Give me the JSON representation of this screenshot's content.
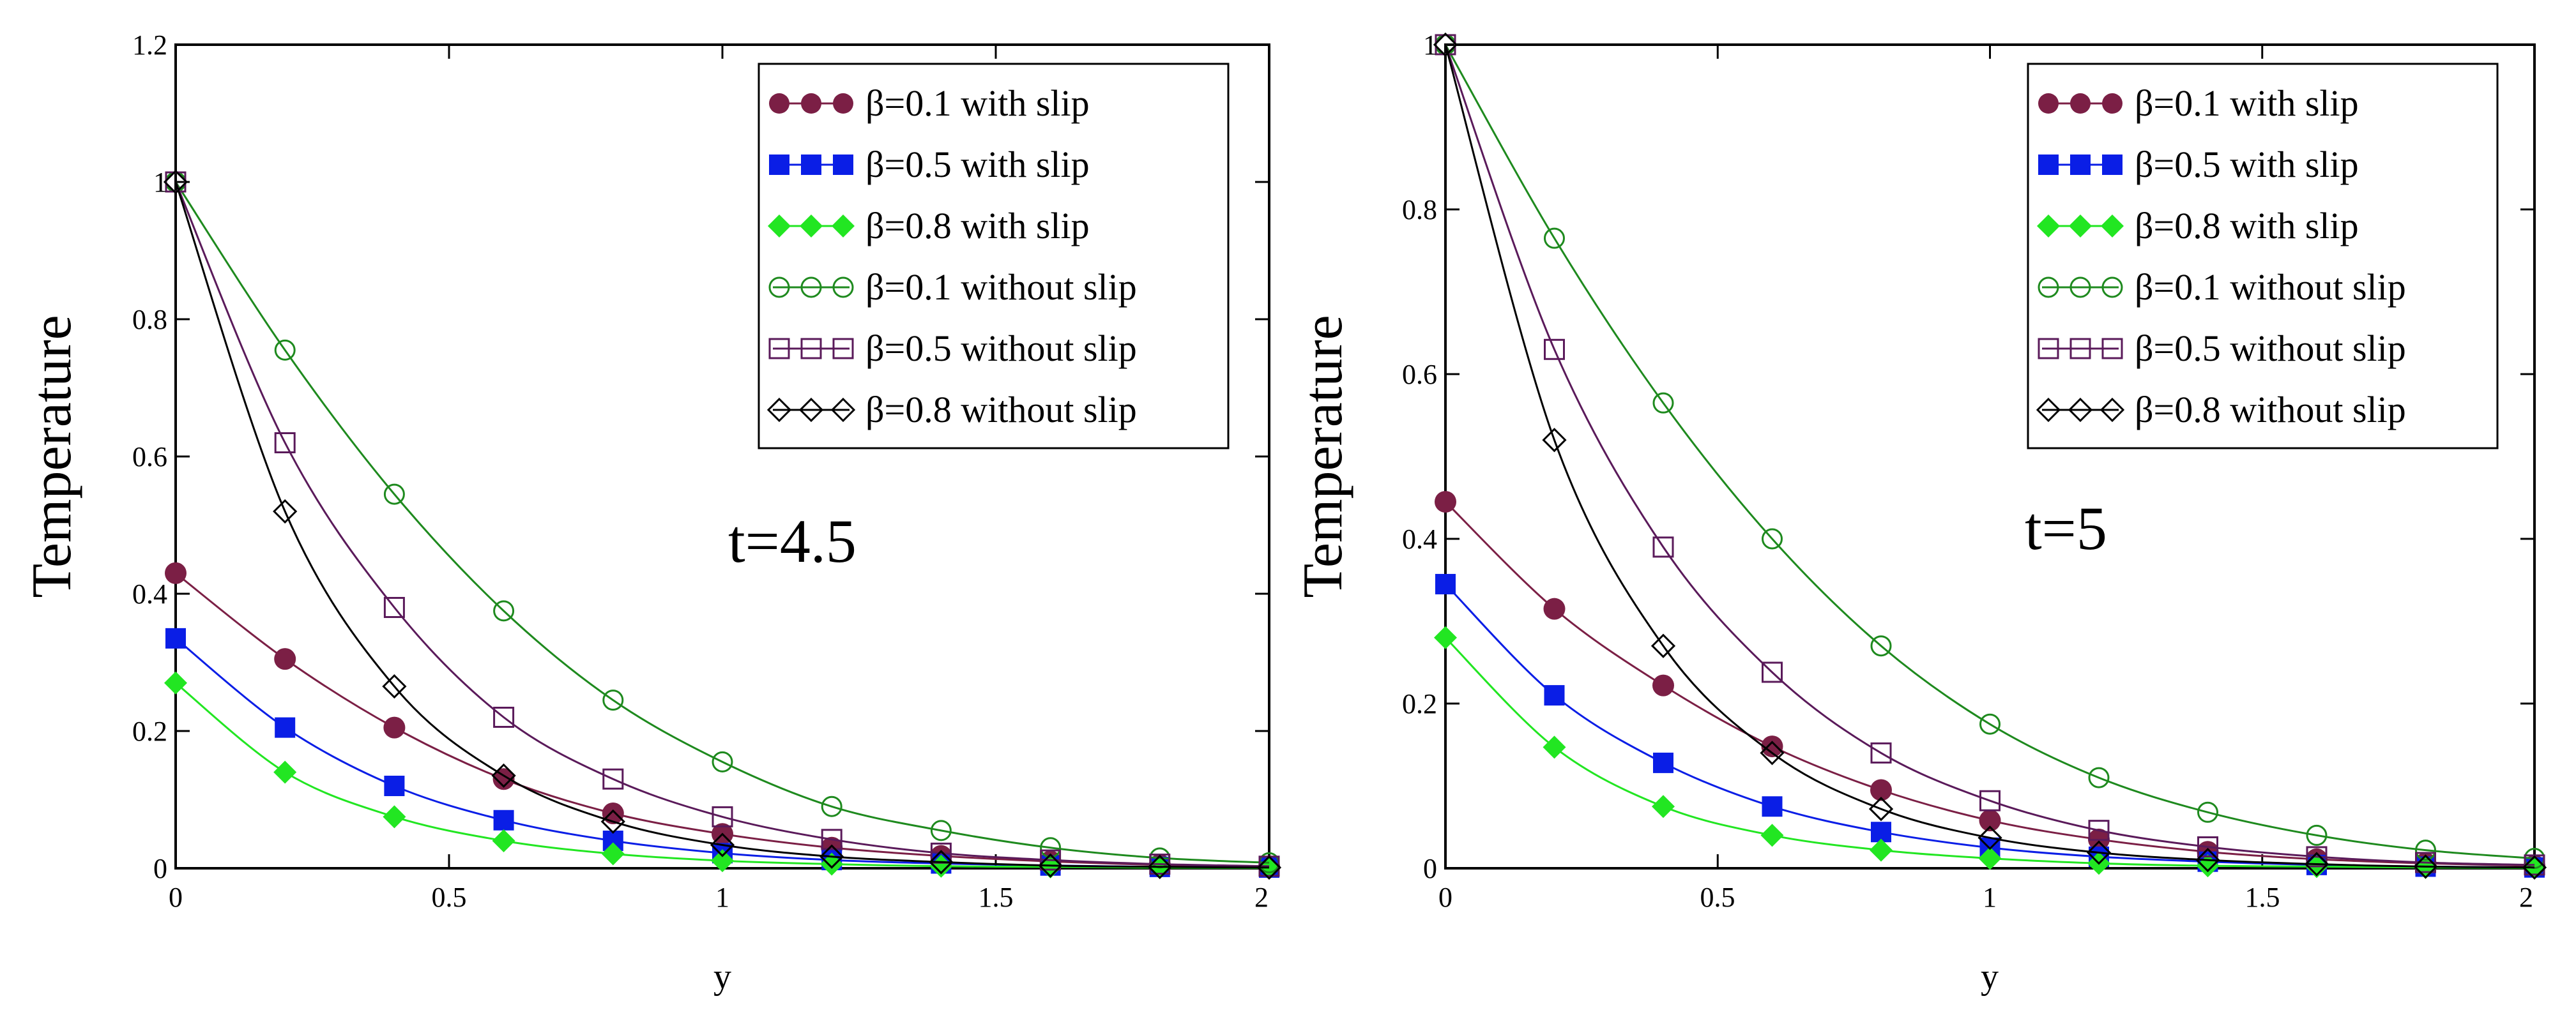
{
  "colors": {
    "maroon": "#7b1f45",
    "blue": "#0a1ee6",
    "lime": "#22e622",
    "green": "#1e8a1e",
    "purple": "#5a1a5a",
    "black": "#000000"
  },
  "chart_data": [
    {
      "type": "line",
      "title": "",
      "annotation": "t=4.5",
      "xlabel": "y",
      "ylabel": "Temperature",
      "xlim": [
        0,
        2
      ],
      "ylim": [
        0,
        1.2
      ],
      "xticks": [
        0,
        0.5,
        1,
        1.5,
        2
      ],
      "xtick_labels": [
        "0",
        "0.5",
        "1",
        "1.5",
        "2"
      ],
      "yticks": [
        0,
        0.2,
        0.4,
        0.6,
        0.8,
        1,
        1.2
      ],
      "ytick_labels": [
        "0",
        "0.2",
        "0.4",
        "0.6",
        "0.8",
        "1",
        "1.2"
      ],
      "legend_position": "top-right",
      "x": [
        0,
        0.2,
        0.4,
        0.6,
        0.8,
        1.0,
        1.2,
        1.4,
        1.6,
        1.8,
        2.0
      ],
      "series": [
        {
          "name": "β=0.1 with slip",
          "color": "maroon",
          "marker": "filled-circle",
          "values": [
            0.43,
            0.305,
            0.205,
            0.13,
            0.08,
            0.05,
            0.03,
            0.018,
            0.01,
            0.005,
            0.003
          ]
        },
        {
          "name": "β=0.5 with slip",
          "color": "blue",
          "marker": "filled-square",
          "values": [
            0.335,
            0.205,
            0.12,
            0.07,
            0.04,
            0.022,
            0.012,
            0.007,
            0.004,
            0.002,
            0.001
          ]
        },
        {
          "name": "β=0.8 with slip",
          "color": "lime",
          "marker": "filled-diamond",
          "values": [
            0.27,
            0.14,
            0.075,
            0.04,
            0.021,
            0.011,
            0.006,
            0.003,
            0.002,
            0.001,
            0.0005
          ]
        },
        {
          "name": "β=0.1 without slip",
          "color": "green",
          "marker": "open-circle",
          "values": [
            1.0,
            0.755,
            0.545,
            0.375,
            0.245,
            0.155,
            0.09,
            0.055,
            0.03,
            0.015,
            0.008
          ]
        },
        {
          "name": "β=0.5 without slip",
          "color": "purple",
          "marker": "open-square",
          "values": [
            1.0,
            0.62,
            0.38,
            0.22,
            0.13,
            0.075,
            0.042,
            0.022,
            0.012,
            0.006,
            0.003
          ]
        },
        {
          "name": "β=0.8 without slip",
          "color": "black",
          "marker": "open-diamond",
          "values": [
            1.0,
            0.52,
            0.265,
            0.135,
            0.068,
            0.034,
            0.017,
            0.009,
            0.004,
            0.002,
            0.001
          ]
        }
      ]
    },
    {
      "type": "line",
      "title": "",
      "annotation": "t=5",
      "xlabel": "y",
      "ylabel": "Temperature",
      "xlim": [
        0,
        2
      ],
      "ylim": [
        0,
        1.0
      ],
      "xticks": [
        0,
        0.5,
        1,
        1.5,
        2
      ],
      "xtick_labels": [
        "0",
        "0.5",
        "1",
        "1.5",
        "2"
      ],
      "yticks": [
        0,
        0.2,
        0.4,
        0.6,
        0.8,
        1
      ],
      "ytick_labels": [
        "0",
        "0.2",
        "0.4",
        "0.6",
        "0.8",
        "1"
      ],
      "legend_position": "top-right",
      "x": [
        0,
        0.2,
        0.4,
        0.6,
        0.8,
        1.0,
        1.2,
        1.4,
        1.6,
        1.8,
        2.0
      ],
      "series": [
        {
          "name": "β=0.1 with slip",
          "color": "maroon",
          "marker": "filled-circle",
          "values": [
            0.445,
            0.315,
            0.222,
            0.148,
            0.095,
            0.058,
            0.035,
            0.02,
            0.011,
            0.006,
            0.003
          ]
        },
        {
          "name": "β=0.5 with slip",
          "color": "blue",
          "marker": "filled-square",
          "values": [
            0.345,
            0.21,
            0.128,
            0.075,
            0.044,
            0.025,
            0.014,
            0.008,
            0.004,
            0.002,
            0.001
          ]
        },
        {
          "name": "β=0.8 with slip",
          "color": "lime",
          "marker": "filled-diamond",
          "values": [
            0.28,
            0.147,
            0.075,
            0.04,
            0.022,
            0.012,
            0.006,
            0.003,
            0.002,
            0.001,
            0.0005
          ]
        },
        {
          "name": "β=0.1 without slip",
          "color": "green",
          "marker": "open-circle",
          "values": [
            1.0,
            0.765,
            0.565,
            0.4,
            0.27,
            0.175,
            0.11,
            0.068,
            0.04,
            0.022,
            0.012
          ]
        },
        {
          "name": "β=0.5 without slip",
          "color": "purple",
          "marker": "open-square",
          "values": [
            1.0,
            0.63,
            0.39,
            0.238,
            0.14,
            0.082,
            0.046,
            0.026,
            0.014,
            0.007,
            0.004
          ]
        },
        {
          "name": "β=0.8 without slip",
          "color": "black",
          "marker": "open-diamond",
          "values": [
            1.0,
            0.52,
            0.27,
            0.14,
            0.072,
            0.037,
            0.019,
            0.01,
            0.005,
            0.002,
            0.001
          ]
        }
      ]
    }
  ]
}
